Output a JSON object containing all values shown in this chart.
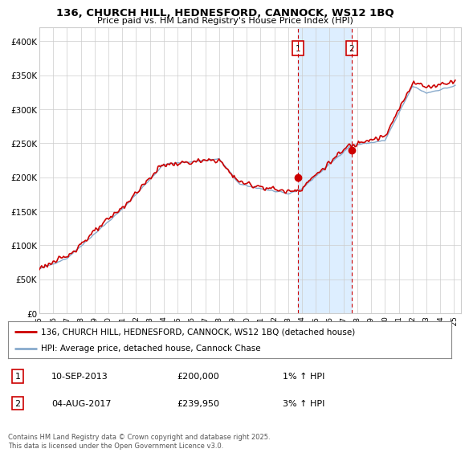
{
  "title": "136, CHURCH HILL, HEDNESFORD, CANNOCK, WS12 1BQ",
  "subtitle": "Price paid vs. HM Land Registry's House Price Index (HPI)",
  "ylim": [
    0,
    420000
  ],
  "xlim_start": 1995.0,
  "xlim_end": 2025.5,
  "yticks": [
    0,
    50000,
    100000,
    150000,
    200000,
    250000,
    300000,
    350000,
    400000
  ],
  "ytick_labels": [
    "£0",
    "£50K",
    "£100K",
    "£150K",
    "£200K",
    "£250K",
    "£300K",
    "£350K",
    "£400K"
  ],
  "event1_x": 2013.69,
  "event1_y": 200000,
  "event2_x": 2017.58,
  "event2_y": 239950,
  "event1_label": "1",
  "event2_label": "2",
  "event1_date": "10-SEP-2013",
  "event2_date": "04-AUG-2017",
  "event1_price": "£200,000",
  "event2_price": "£239,950",
  "event1_hpi": "1% ↑ HPI",
  "event2_hpi": "3% ↑ HPI",
  "line1_label": "136, CHURCH HILL, HEDNESFORD, CANNOCK, WS12 1BQ (detached house)",
  "line2_label": "HPI: Average price, detached house, Cannock Chase",
  "line1_color": "#cc0000",
  "line2_color": "#88aacc",
  "shade_color": "#ddeeff",
  "grid_color": "#cccccc",
  "background_color": "#ffffff",
  "footer": "Contains HM Land Registry data © Crown copyright and database right 2025.\nThis data is licensed under the Open Government Licence v3.0."
}
